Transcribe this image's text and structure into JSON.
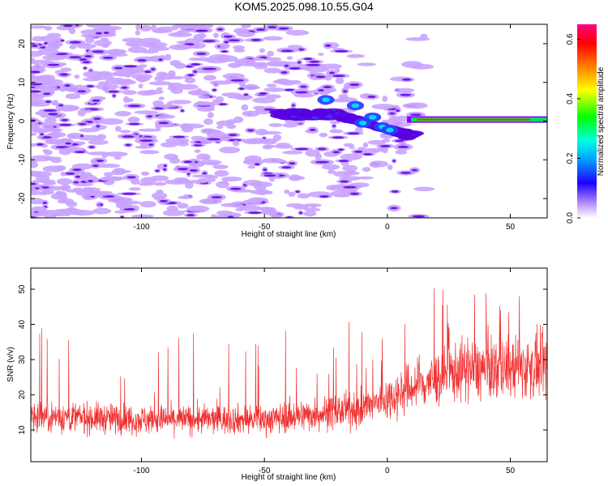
{
  "title": "KOM5.2025.098.10.55.G04",
  "chart_data": [
    {
      "type": "heatmap",
      "xlabel": "Height of straight line (km)",
      "ylabel": "Frequency (Hz)",
      "xlim": [
        -145,
        65
      ],
      "ylim": [
        -25,
        25
      ],
      "xticks": [
        -100,
        -50,
        0,
        50
      ],
      "yticks": [
        -20,
        -10,
        0,
        10,
        20
      ],
      "colorbar": {
        "label": "Normalized spectral amplitude",
        "range": [
          0,
          0.65
        ],
        "ticks": [
          0.0,
          0.2,
          0.4,
          0.6
        ]
      },
      "colors": {
        "low": "#c9a3ff",
        "mid": "#5a00e0",
        "high": "#ff0080"
      }
    },
    {
      "type": "line",
      "xlabel": "Height of straight line (km)",
      "ylabel": "SNR (v/v)",
      "xlim": [
        -145,
        65
      ],
      "ylim": [
        1,
        56
      ],
      "xticks": [
        -100,
        -50,
        0,
        50
      ],
      "yticks": [
        10,
        20,
        30,
        40,
        50
      ],
      "color": "#f03030",
      "trend": [
        {
          "x": -145,
          "y": 14
        },
        {
          "x": -100,
          "y": 13
        },
        {
          "x": -50,
          "y": 13
        },
        {
          "x": -10,
          "y": 16
        },
        {
          "x": 10,
          "y": 22
        },
        {
          "x": 30,
          "y": 27
        },
        {
          "x": 65,
          "y": 28
        }
      ]
    }
  ]
}
